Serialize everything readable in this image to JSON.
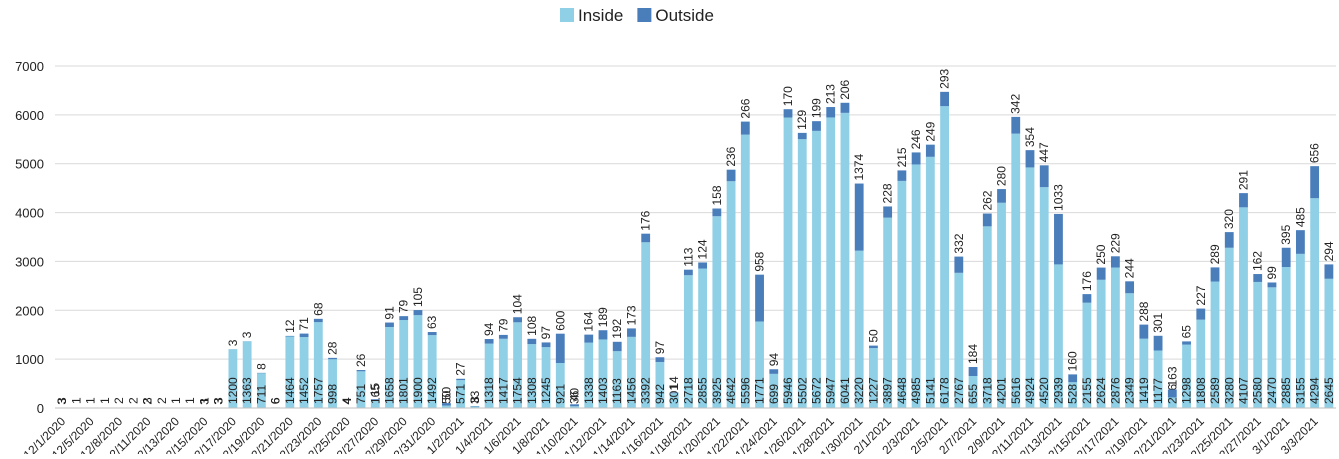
{
  "chart_data": {
    "type": "stacked_bar",
    "categories": [
      "12/1/2020",
      null,
      "12/5/2020",
      null,
      "12/8/2020",
      null,
      "12/11/2020",
      null,
      "12/13/2020",
      null,
      "12/15/2020",
      null,
      "12/17/2020",
      null,
      "12/19/2020",
      null,
      "12/21/2020",
      null,
      "12/23/2020",
      null,
      "12/25/2020",
      null,
      "12/27/2020",
      null,
      "12/29/2020",
      null,
      "12/31/2020",
      null,
      "1/2/2021",
      null,
      "1/4/2021",
      null,
      "1/6/2021",
      null,
      "1/8/2021",
      null,
      "1/10/2021",
      null,
      "1/12/2021",
      null,
      "1/14/2021",
      null,
      "1/16/2021",
      null,
      "1/18/2021",
      null,
      "1/20/2021",
      null,
      "1/22/2021",
      null,
      "1/24/2021",
      null,
      "1/26/2021",
      null,
      "1/28/2021",
      null,
      "1/30/2021",
      null,
      "2/1/2021",
      null,
      "2/3/2021",
      null,
      "2/5/2021",
      null,
      "2/7/2021",
      null,
      "2/9/2021",
      null,
      "2/11/2021",
      null,
      "2/13/2021",
      null,
      "2/15/2021",
      null,
      "2/17/2021",
      null,
      "2/19/2021",
      null,
      "2/21/2021",
      null,
      "2/23/2021",
      null,
      "2/25/2021",
      null,
      "2/27/2021",
      null,
      "3/1/2021",
      null,
      "3/3/2021",
      null
    ],
    "series": [
      {
        "name": "Inside",
        "color": "#8fd0e6",
        "values": [
          3,
          1,
          1,
          1,
          2,
          2,
          3,
          2,
          1,
          1,
          1,
          3,
          1200,
          1363,
          711,
          6,
          1464,
          1452,
          1757,
          998,
          4,
          751,
          165,
          1658,
          1801,
          1900,
          1492,
          50,
          571,
          33,
          1318,
          1417,
          1754,
          1308,
          1245,
          921,
          36,
          1338,
          1403,
          1163,
          1456,
          3392,
          942,
          301,
          2718,
          2855,
          3925,
          4642,
          5596,
          1771,
          699,
          5946,
          5502,
          5672,
          5947,
          6041,
          3220,
          1227,
          3897,
          4648,
          4985,
          5141,
          6178,
          2767,
          655,
          3718,
          4201,
          5616,
          4924,
          4520,
          2939,
          528,
          2155,
          2624,
          2876,
          2349,
          1419,
          1177,
          216,
          1298,
          1808,
          2589,
          3280,
          4107,
          2580,
          2470,
          2885,
          3155,
          4294,
          2645
        ]
      },
      {
        "name": "Outside",
        "color": "#4a7ebb",
        "values": [
          3,
          null,
          null,
          null,
          null,
          null,
          2,
          null,
          null,
          null,
          3,
          3,
          3,
          3,
          8,
          6,
          12,
          71,
          68,
          28,
          4,
          26,
          15,
          91,
          79,
          105,
          63,
          50,
          27,
          8,
          94,
          79,
          104,
          108,
          97,
          600,
          40,
          164,
          189,
          192,
          173,
          176,
          97,
          14,
          113,
          124,
          158,
          236,
          266,
          958,
          94,
          170,
          129,
          199,
          213,
          206,
          1374,
          50,
          228,
          215,
          246,
          249,
          293,
          332,
          184,
          262,
          280,
          342,
          354,
          447,
          1033,
          160,
          176,
          250,
          229,
          244,
          288,
          301,
          163,
          65,
          227,
          289,
          320,
          291,
          162,
          99,
          395,
          485,
          656,
          294
        ]
      }
    ],
    "ylim": [
      0,
      7000
    ],
    "yticks": [
      0,
      1000,
      2000,
      3000,
      4000,
      5000,
      6000,
      7000
    ],
    "grid": true,
    "legend": "top"
  }
}
